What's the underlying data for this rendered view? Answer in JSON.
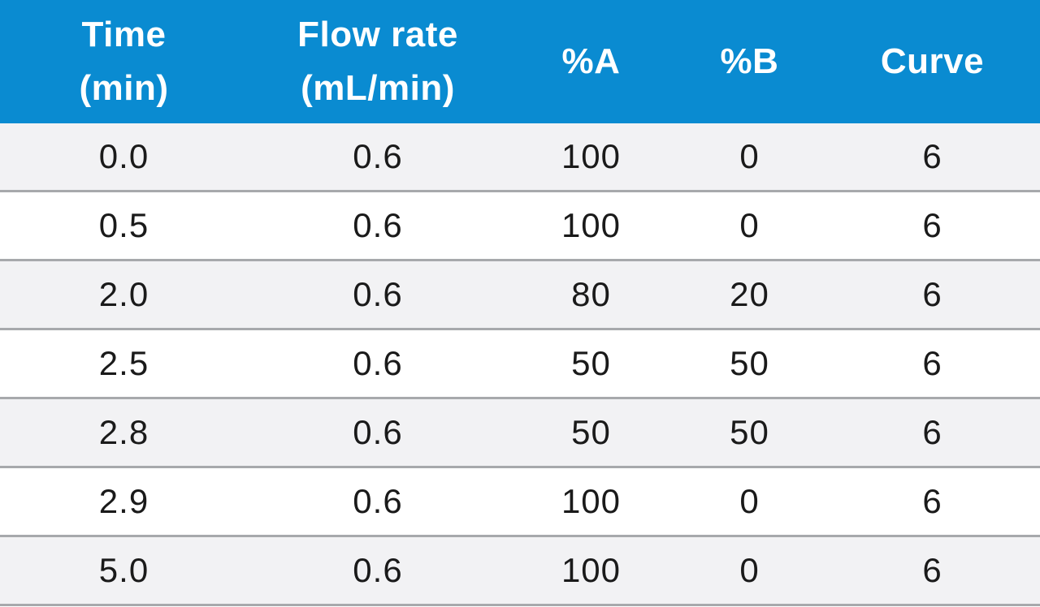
{
  "table": {
    "headers": [
      {
        "line1": "Time",
        "line2": "(min)"
      },
      {
        "line1": "Flow rate",
        "line2": "(mL/min)"
      },
      {
        "line1": "%A",
        "line2": ""
      },
      {
        "line1": "%B",
        "line2": ""
      },
      {
        "line1": "Curve",
        "line2": ""
      }
    ],
    "rows": [
      [
        "0.0",
        "0.6",
        "100",
        "0",
        "6"
      ],
      [
        "0.5",
        "0.6",
        "100",
        "0",
        "6"
      ],
      [
        "2.0",
        "0.6",
        "80",
        "20",
        "6"
      ],
      [
        "2.5",
        "0.6",
        "50",
        "50",
        "6"
      ],
      [
        "2.8",
        "0.6",
        "50",
        "50",
        "6"
      ],
      [
        "2.9",
        "0.6",
        "100",
        "0",
        "6"
      ],
      [
        "5.0",
        "0.6",
        "100",
        "0",
        "6"
      ]
    ],
    "colors": {
      "header_bg": "#0a8bd1",
      "header_text": "#ffffff",
      "row_odd_bg": "#f2f2f4",
      "row_even_bg": "#ffffff",
      "row_divider": "#a7a9ac"
    }
  }
}
